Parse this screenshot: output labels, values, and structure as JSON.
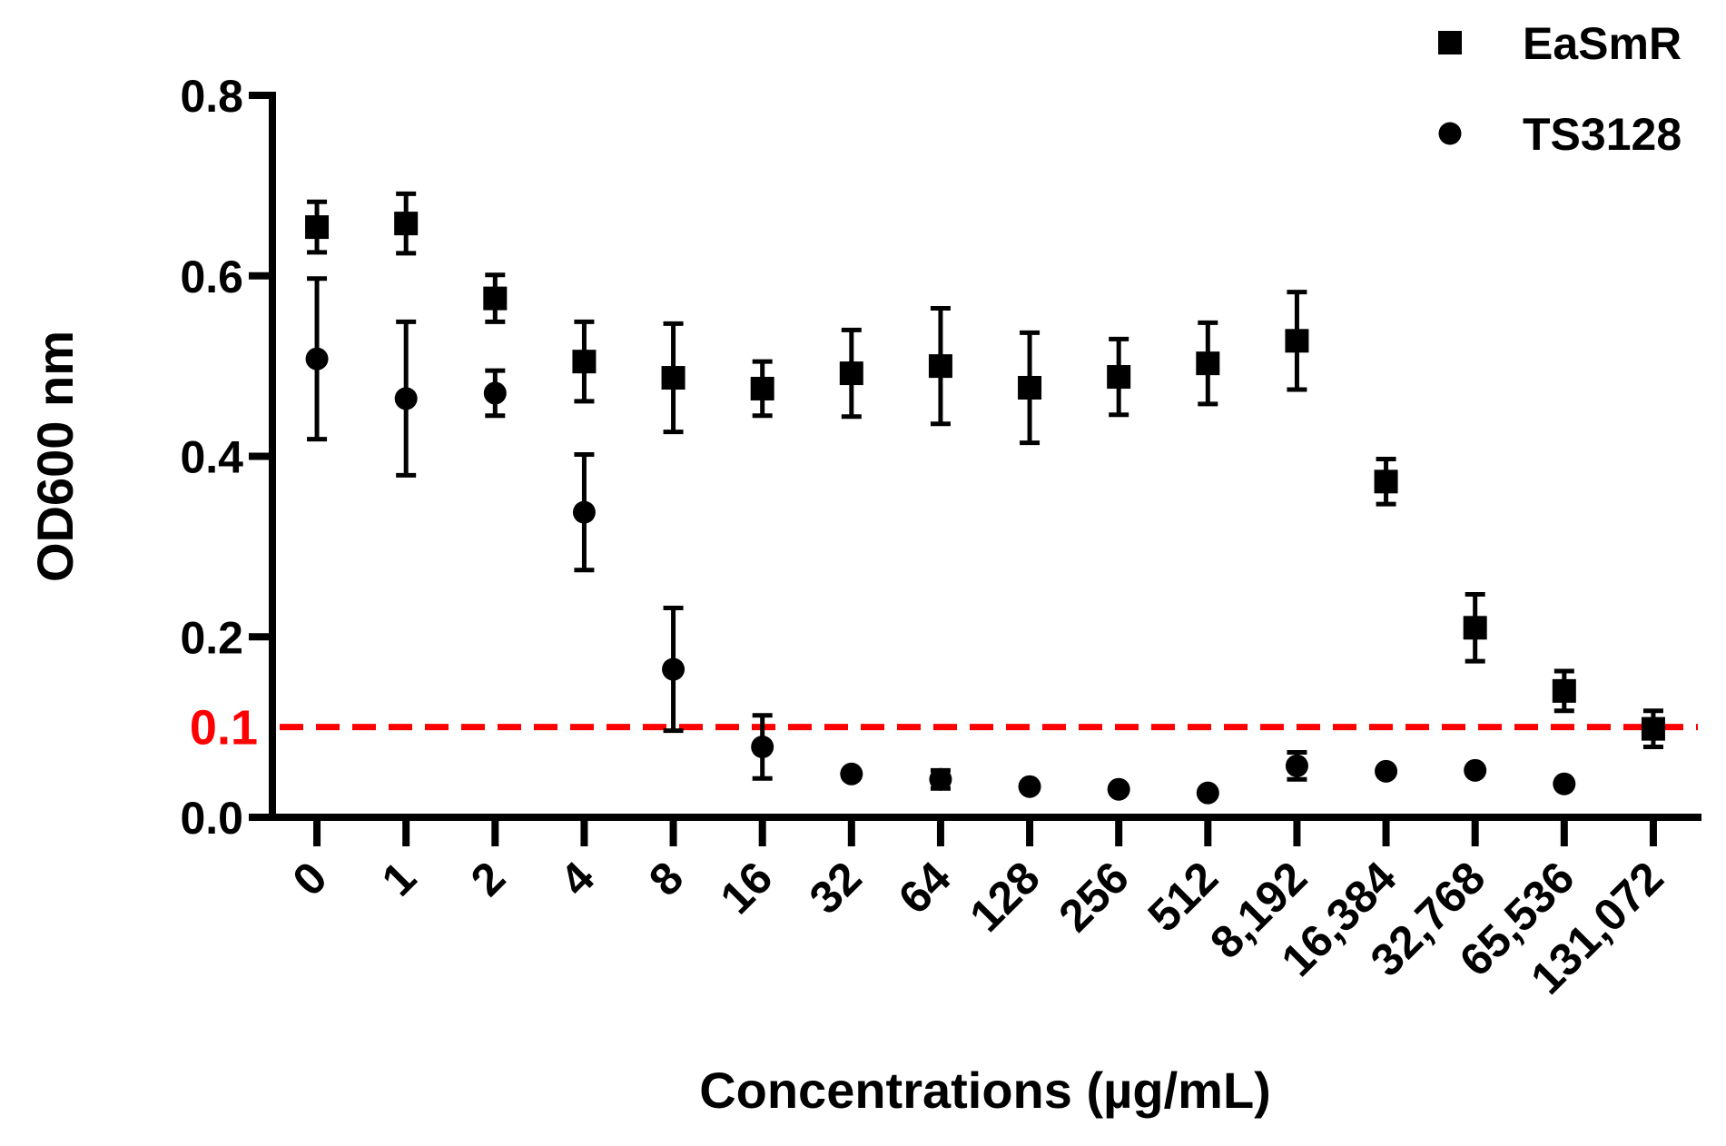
{
  "chart_data": {
    "type": "scatter",
    "title": "",
    "xlabel": "Concentrations (µg/mL)",
    "ylabel": "OD600 nm",
    "ylim": [
      0,
      0.8
    ],
    "yticks": [
      "0.0",
      "0.2",
      "0.4",
      "0.6",
      "0.8"
    ],
    "ytick_values": [
      0,
      0.2,
      0.4,
      0.6,
      0.8
    ],
    "categories": [
      "0",
      "1",
      "2",
      "4",
      "8",
      "16",
      "32",
      "64",
      "128",
      "256",
      "512",
      "8,192",
      "16,384",
      "32,768",
      "65,536",
      "131,072"
    ],
    "legend_position": "top-right",
    "series": [
      {
        "name": "EaSmR",
        "marker": "square",
        "values": [
          0.654,
          0.658,
          0.575,
          0.505,
          0.487,
          0.475,
          0.492,
          0.5,
          0.476,
          0.488,
          0.503,
          0.528,
          0.372,
          0.21,
          0.14,
          0.098
        ],
        "errors": [
          0.028,
          0.033,
          0.026,
          0.044,
          0.06,
          0.03,
          0.048,
          0.064,
          0.061,
          0.042,
          0.045,
          0.054,
          0.025,
          0.037,
          0.022,
          0.02
        ]
      },
      {
        "name": "TS3128",
        "marker": "circle",
        "values": [
          0.508,
          0.464,
          0.47,
          0.338,
          0.164,
          0.078,
          0.048,
          0.042,
          0.034,
          0.031,
          0.027,
          0.057,
          0.051,
          0.052,
          0.037
        ],
        "errors": [
          0.089,
          0.085,
          0.025,
          0.064,
          0.068,
          0.035,
          0,
          0.01,
          0,
          0,
          0,
          0.015,
          0,
          0,
          0
        ]
      }
    ],
    "threshold": {
      "value": 0.1,
      "label": "0.1",
      "color": "#ff0000",
      "style": "dashed"
    }
  }
}
